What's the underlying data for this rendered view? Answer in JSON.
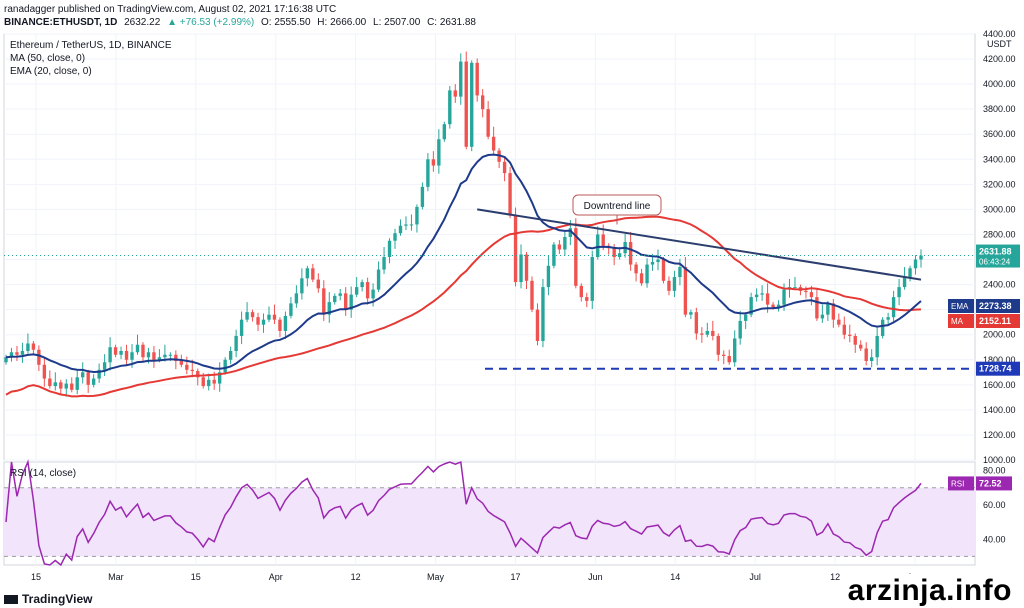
{
  "header": {
    "line1": "ranadagger published on TradingView.com, August 02, 2021 17:16:38 UTC",
    "symbol": "BINANCE:ETHUSDT, 1D",
    "last": "2632.22",
    "change": "▲ +76.53 (+2.99%)",
    "o": "O: 2555.50",
    "h": "H: 2666.00",
    "l": "L: 2507.00",
    "c": "C: 2631.88"
  },
  "legend": {
    "title": "Ethereum / TetherUS, 1D, BINANCE",
    "ma": "MA (50, close, 0)",
    "ema": "EMA (20, close, 0)",
    "rsi": "RSI (14, close)"
  },
  "footer": {
    "logo": "TradingView",
    "watermark": "arzinja.info"
  },
  "colors": {
    "up": "#26a69a",
    "down": "#ef5350",
    "ma": "#e53935",
    "ema": "#1e3a8a",
    "rsi": "#9c27b0",
    "rsi_fill": "#f1e4fb",
    "trend": "#2c3e6e",
    "support": "#1e3ab8"
  },
  "chart_data": {
    "type": "candlestick",
    "price_axis": {
      "ylim": [
        1000,
        4400
      ],
      "ticks": [
        "4400.00",
        "4200.00",
        "4000.00",
        "3800.00",
        "3600.00",
        "3400.00",
        "3200.00",
        "3000.00",
        "2800.00",
        "2600.00",
        "2400.00",
        "2200.00",
        "2000.00",
        "1800.00",
        "1600.00",
        "1400.00",
        "1200.00",
        "1000.00"
      ],
      "unit": "USDT"
    },
    "x_ticks": [
      "15",
      "Mar",
      "15",
      "Apr",
      "12",
      "May",
      "17",
      "Jun",
      "14",
      "Jul",
      "12",
      "Aug"
    ],
    "close": [
      1820,
      1860,
      1840,
      1870,
      1930,
      1880,
      1760,
      1650,
      1590,
      1620,
      1570,
      1610,
      1560,
      1660,
      1700,
      1600,
      1650,
      1720,
      1780,
      1900,
      1840,
      1870,
      1800,
      1860,
      1920,
      1820,
      1860,
      1800,
      1820,
      1840,
      1840,
      1790,
      1760,
      1720,
      1710,
      1660,
      1590,
      1640,
      1610,
      1700,
      1800,
      1870,
      1990,
      2120,
      2180,
      2140,
      2080,
      2120,
      2160,
      2120,
      2030,
      2150,
      2250,
      2330,
      2450,
      2530,
      2440,
      2370,
      2160,
      2260,
      2310,
      2330,
      2200,
      2320,
      2380,
      2420,
      2290,
      2360,
      2520,
      2620,
      2750,
      2810,
      2870,
      2880,
      2880,
      3020,
      3180,
      3400,
      3350,
      3560,
      3680,
      3950,
      3900,
      4180,
      3500,
      4170,
      3910,
      3800,
      3580,
      3470,
      3380,
      3290,
      2950,
      2420,
      2640,
      2430,
      2200,
      1950,
      2380,
      2550,
      2720,
      2680,
      2780,
      2850,
      2390,
      2300,
      2270,
      2620,
      2800,
      2710,
      2690,
      2620,
      2650,
      2740,
      2560,
      2490,
      2410,
      2560,
      2580,
      2600,
      2430,
      2350,
      2460,
      2540,
      2160,
      2180,
      2010,
      2000,
      2030,
      1990,
      1840,
      1830,
      1780,
      1970,
      2110,
      2160,
      2300,
      2320,
      2330,
      2240,
      2220,
      2240,
      2360,
      2380,
      2380,
      2350,
      2340,
      2300,
      2130,
      2160,
      2250,
      2120,
      2080,
      2000,
      1990,
      1920,
      1890,
      1790,
      1820,
      1990,
      2120,
      2140,
      2300,
      2380,
      2460,
      2530,
      2600,
      2631
    ],
    "ema20_last": 2273.38,
    "ma50_last": 2152.11,
    "support_level": 1728.74,
    "last_price": 2631.88,
    "countdown": "06:43:24",
    "annotation": "Downtrend line",
    "rsi_axis": {
      "ylim": [
        25,
        85
      ],
      "ticks": [
        "80.00",
        "60.00",
        "40.00"
      ]
    },
    "rsi_last": 72.52
  }
}
